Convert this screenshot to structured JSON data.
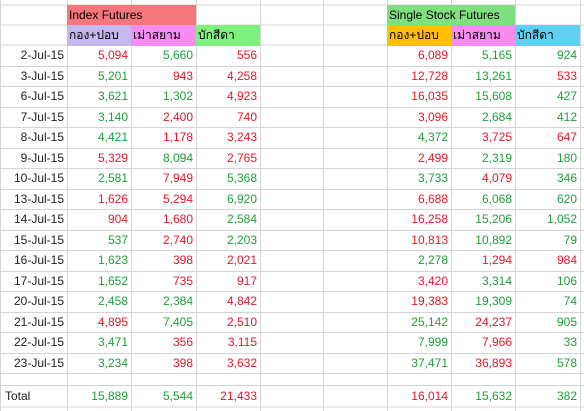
{
  "groups": {
    "index_label": "Index Futures",
    "single_label": "Single Stock Futures"
  },
  "index_headers": [
    "กอง+ปอบ",
    "เม่าสยาม",
    "บักสีดา"
  ],
  "single_headers": [
    "กอง+ปอบ",
    "เม่าสยาม",
    "บักสีดา"
  ],
  "colors": {
    "index_group_bg": "#f4777b",
    "single_group_bg": "#7fe07f",
    "h1_bg": "#c4b8ec",
    "h2_bg": "#f58cf0",
    "h3_bg": "#7ef07e",
    "s1_bg": "#ffc000",
    "s2_bg": "#f58cf0",
    "s3_bg": "#5fd0ef",
    "green": "#1f9e3a",
    "red": "#e0192b"
  },
  "rows": [
    {
      "date": "2-Jul-15",
      "i": [
        [
          "5,094",
          "r"
        ],
        [
          "5,660",
          "g"
        ],
        [
          "556",
          "r"
        ]
      ],
      "s": [
        [
          "6,089",
          "r"
        ],
        [
          "5,165",
          "g"
        ],
        [
          "924",
          "g"
        ]
      ]
    },
    {
      "date": "3-Jul-15",
      "i": [
        [
          "5,201",
          "g"
        ],
        [
          "943",
          "r"
        ],
        [
          "4,258",
          "r"
        ]
      ],
      "s": [
        [
          "12,728",
          "r"
        ],
        [
          "13,261",
          "g"
        ],
        [
          "533",
          "r"
        ]
      ]
    },
    {
      "date": "6-Jul-15",
      "i": [
        [
          "3,621",
          "g"
        ],
        [
          "1,302",
          "g"
        ],
        [
          "4,923",
          "r"
        ]
      ],
      "s": [
        [
          "16,035",
          "r"
        ],
        [
          "15,608",
          "g"
        ],
        [
          "427",
          "g"
        ]
      ]
    },
    {
      "date": "7-Jul-15",
      "i": [
        [
          "3,140",
          "g"
        ],
        [
          "2,400",
          "r"
        ],
        [
          "740",
          "r"
        ]
      ],
      "s": [
        [
          "3,096",
          "r"
        ],
        [
          "2,684",
          "g"
        ],
        [
          "412",
          "g"
        ]
      ]
    },
    {
      "date": "8-Jul-15",
      "i": [
        [
          "4,421",
          "g"
        ],
        [
          "1,178",
          "r"
        ],
        [
          "3,243",
          "r"
        ]
      ],
      "s": [
        [
          "4,372",
          "g"
        ],
        [
          "3,725",
          "r"
        ],
        [
          "647",
          "r"
        ]
      ]
    },
    {
      "date": "9-Jul-15",
      "i": [
        [
          "5,329",
          "r"
        ],
        [
          "8,094",
          "g"
        ],
        [
          "2,765",
          "r"
        ]
      ],
      "s": [
        [
          "2,499",
          "r"
        ],
        [
          "2,319",
          "g"
        ],
        [
          "180",
          "g"
        ]
      ]
    },
    {
      "date": "10-Jul-15",
      "i": [
        [
          "2,581",
          "g"
        ],
        [
          "7,949",
          "r"
        ],
        [
          "5,368",
          "g"
        ]
      ],
      "s": [
        [
          "3,733",
          "g"
        ],
        [
          "4,079",
          "r"
        ],
        [
          "346",
          "g"
        ]
      ]
    },
    {
      "date": "13-Jul-15",
      "i": [
        [
          "1,626",
          "r"
        ],
        [
          "5,294",
          "r"
        ],
        [
          "6,920",
          "g"
        ]
      ],
      "s": [
        [
          "6,688",
          "r"
        ],
        [
          "6,068",
          "g"
        ],
        [
          "620",
          "g"
        ]
      ]
    },
    {
      "date": "14-Jul-15",
      "i": [
        [
          "904",
          "r"
        ],
        [
          "1,680",
          "r"
        ],
        [
          "2,584",
          "g"
        ]
      ],
      "s": [
        [
          "16,258",
          "r"
        ],
        [
          "15,206",
          "g"
        ],
        [
          "1,052",
          "g"
        ]
      ]
    },
    {
      "date": "15-Jul-15",
      "i": [
        [
          "537",
          "g"
        ],
        [
          "2,740",
          "r"
        ],
        [
          "2,203",
          "g"
        ]
      ],
      "s": [
        [
          "10,813",
          "r"
        ],
        [
          "10,892",
          "g"
        ],
        [
          "79",
          "g"
        ]
      ]
    },
    {
      "date": "16-Jul-15",
      "i": [
        [
          "1,623",
          "g"
        ],
        [
          "398",
          "r"
        ],
        [
          "2,021",
          "r"
        ]
      ],
      "s": [
        [
          "2,278",
          "g"
        ],
        [
          "1,294",
          "r"
        ],
        [
          "984",
          "r"
        ]
      ]
    },
    {
      "date": "17-Jul-15",
      "i": [
        [
          "1,652",
          "g"
        ],
        [
          "735",
          "r"
        ],
        [
          "917",
          "r"
        ]
      ],
      "s": [
        [
          "3,420",
          "r"
        ],
        [
          "3,314",
          "g"
        ],
        [
          "106",
          "g"
        ]
      ]
    },
    {
      "date": "20-Jul-15",
      "i": [
        [
          "2,458",
          "g"
        ],
        [
          "2,384",
          "g"
        ],
        [
          "4,842",
          "r"
        ]
      ],
      "s": [
        [
          "19,383",
          "r"
        ],
        [
          "19,309",
          "g"
        ],
        [
          "74",
          "g"
        ]
      ]
    },
    {
      "date": "21-Jul-15",
      "i": [
        [
          "4,895",
          "r"
        ],
        [
          "7,405",
          "g"
        ],
        [
          "2,510",
          "r"
        ]
      ],
      "s": [
        [
          "25,142",
          "g"
        ],
        [
          "24,237",
          "r"
        ],
        [
          "905",
          "g"
        ]
      ]
    },
    {
      "date": "22-Jul-15",
      "i": [
        [
          "3,471",
          "g"
        ],
        [
          "356",
          "r"
        ],
        [
          "3,115",
          "r"
        ]
      ],
      "s": [
        [
          "7,999",
          "g"
        ],
        [
          "7,966",
          "r"
        ],
        [
          "33",
          "g"
        ]
      ]
    },
    {
      "date": "23-Jul-15",
      "i": [
        [
          "3,234",
          "g"
        ],
        [
          "398",
          "r"
        ],
        [
          "3,632",
          "r"
        ]
      ],
      "s": [
        [
          "37,471",
          "g"
        ],
        [
          "36,893",
          "r"
        ],
        [
          "578",
          "g"
        ]
      ]
    }
  ],
  "total": {
    "label": "Total",
    "i": [
      [
        "15,889",
        "g"
      ],
      [
        "5,544",
        "g"
      ],
      [
        "21,433",
        "r"
      ]
    ],
    "s": [
      [
        "16,014",
        "r"
      ],
      [
        "15,632",
        "g"
      ],
      [
        "382",
        "g"
      ]
    ]
  }
}
